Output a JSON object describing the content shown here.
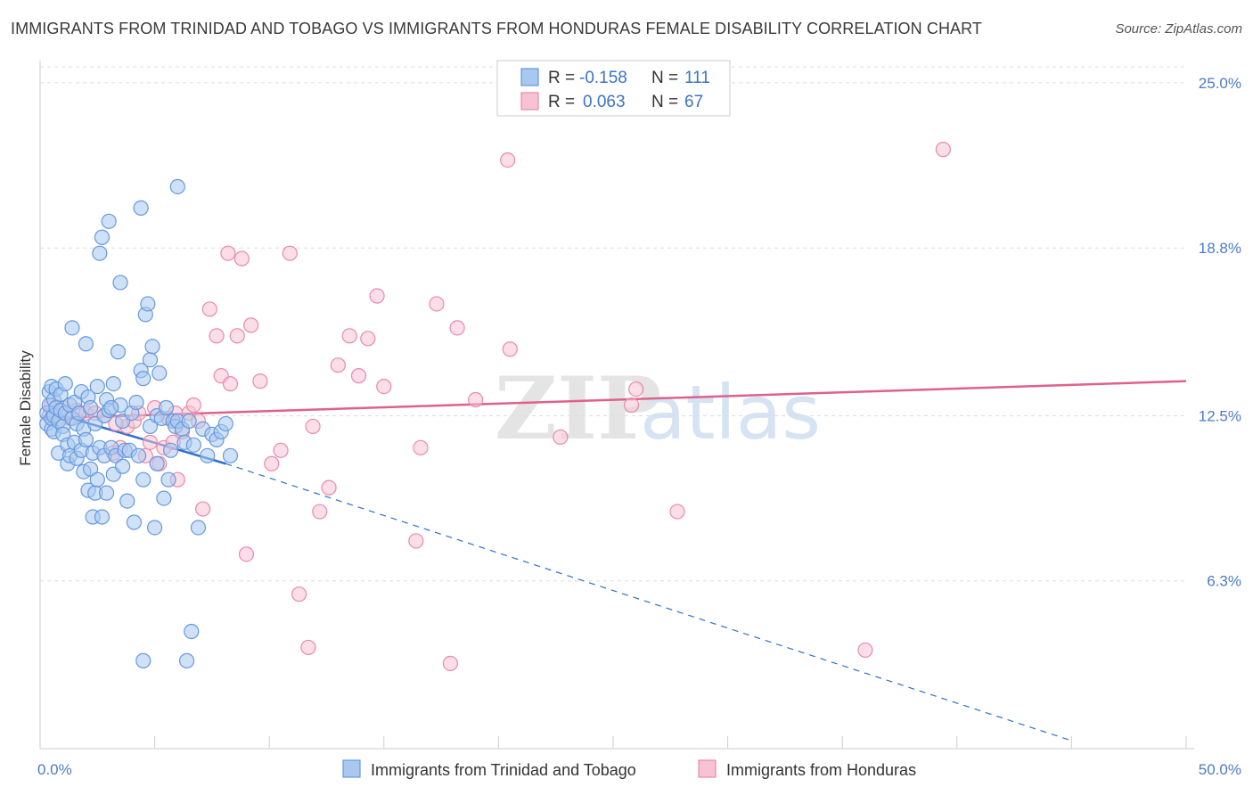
{
  "title": "IMMIGRANTS FROM TRINIDAD AND TOBAGO VS IMMIGRANTS FROM HONDURAS FEMALE DISABILITY CORRELATION CHART",
  "source": "Source: ZipAtlas.com",
  "watermark": {
    "zip": "ZIP",
    "atlas": "atlas"
  },
  "colors": {
    "blue_fill": "#a8c8f0",
    "blue_stroke": "#6699dd",
    "blue_line": "#2f6fce",
    "pink_fill": "#f7c2d4",
    "pink_stroke": "#e88aab",
    "pink_line": "#e0608c",
    "grid": "#dddddd",
    "axis_text": "#4a7cc7"
  },
  "legend": {
    "rows": [
      {
        "r_label": "R =",
        "r_value": "-0.158",
        "n_label": "N =",
        "n_value": "111"
      },
      {
        "r_label": "R =",
        "r_value": "0.063",
        "n_label": "N =",
        "n_value": "67"
      }
    ]
  },
  "chart_data": {
    "type": "scatter",
    "title": "IMMIGRANTS FROM TRINIDAD AND TOBAGO VS IMMIGRANTS FROM HONDURAS FEMALE DISABILITY CORRELATION CHART",
    "xlabel": "",
    "ylabel": "Female Disability",
    "xlim": [
      0,
      50
    ],
    "ylim": [
      0,
      25.6
    ],
    "x_ticks_labels": [
      "0.0%",
      "50.0%"
    ],
    "y_ticks": [
      6.3,
      12.5,
      18.8,
      25.0
    ],
    "y_ticks_labels": [
      "6.3%",
      "12.5%",
      "18.8%",
      "25.0%"
    ],
    "grid": true,
    "legend_position": "top-center",
    "series": [
      {
        "name": "Immigrants from Trinidad and Tobago",
        "color": "#a8c8f0",
        "trend": {
          "x_solid": [
            0.2,
            8.1
          ],
          "y_solid": [
            12.7,
            10.7
          ],
          "x_dashed": [
            8.1,
            45.0
          ],
          "y_dashed": [
            10.7,
            0.3
          ]
        },
        "points": [
          [
            0.3,
            12.6
          ],
          [
            0.3,
            12.2
          ],
          [
            0.4,
            12.9
          ],
          [
            0.4,
            13.4
          ],
          [
            0.5,
            12.0
          ],
          [
            0.5,
            12.4
          ],
          [
            0.5,
            13.6
          ],
          [
            0.6,
            11.9
          ],
          [
            0.6,
            12.5
          ],
          [
            0.6,
            13.1
          ],
          [
            0.7,
            12.8
          ],
          [
            0.7,
            13.5
          ],
          [
            0.8,
            12.3
          ],
          [
            0.8,
            11.1
          ],
          [
            0.9,
            12.7
          ],
          [
            0.9,
            13.3
          ],
          [
            1.0,
            12.1
          ],
          [
            1.0,
            11.8
          ],
          [
            1.1,
            12.6
          ],
          [
            1.1,
            13.7
          ],
          [
            1.2,
            10.7
          ],
          [
            1.2,
            11.4
          ],
          [
            1.3,
            12.9
          ],
          [
            1.3,
            11.0
          ],
          [
            1.4,
            12.4
          ],
          [
            1.4,
            15.8
          ],
          [
            1.5,
            13.0
          ],
          [
            1.5,
            11.5
          ],
          [
            1.6,
            12.2
          ],
          [
            1.6,
            10.9
          ],
          [
            1.7,
            12.6
          ],
          [
            1.8,
            11.2
          ],
          [
            1.8,
            13.4
          ],
          [
            1.9,
            10.4
          ],
          [
            1.9,
            12.0
          ],
          [
            2.0,
            15.2
          ],
          [
            2.0,
            11.6
          ],
          [
            2.1,
            13.2
          ],
          [
            2.1,
            9.7
          ],
          [
            2.2,
            10.5
          ],
          [
            2.2,
            12.8
          ],
          [
            2.3,
            8.7
          ],
          [
            2.3,
            11.1
          ],
          [
            2.4,
            12.2
          ],
          [
            2.4,
            9.6
          ],
          [
            2.5,
            10.1
          ],
          [
            2.5,
            13.6
          ],
          [
            2.6,
            11.3
          ],
          [
            2.6,
            18.6
          ],
          [
            2.7,
            19.2
          ],
          [
            2.7,
            8.7
          ],
          [
            2.8,
            12.5
          ],
          [
            2.8,
            11.0
          ],
          [
            2.9,
            9.6
          ],
          [
            2.9,
            13.1
          ],
          [
            3.0,
            12.7
          ],
          [
            3.0,
            19.8
          ],
          [
            3.1,
            11.3
          ],
          [
            3.2,
            10.3
          ],
          [
            3.2,
            13.7
          ],
          [
            3.3,
            11.0
          ],
          [
            3.4,
            14.9
          ],
          [
            3.5,
            12.9
          ],
          [
            3.5,
            17.5
          ],
          [
            3.6,
            10.6
          ],
          [
            3.6,
            12.3
          ],
          [
            3.7,
            11.2
          ],
          [
            3.8,
            9.3
          ],
          [
            3.9,
            11.2
          ],
          [
            4.0,
            12.6
          ],
          [
            4.1,
            8.5
          ],
          [
            4.2,
            13.0
          ],
          [
            4.3,
            11.0
          ],
          [
            4.4,
            14.2
          ],
          [
            4.4,
            20.3
          ],
          [
            4.5,
            13.9
          ],
          [
            4.5,
            10.1
          ],
          [
            4.6,
            16.3
          ],
          [
            4.7,
            16.7
          ],
          [
            4.8,
            12.1
          ],
          [
            4.8,
            14.6
          ],
          [
            4.9,
            15.1
          ],
          [
            5.0,
            8.3
          ],
          [
            5.1,
            10.7
          ],
          [
            5.1,
            12.5
          ],
          [
            5.2,
            14.1
          ],
          [
            5.3,
            12.4
          ],
          [
            5.4,
            9.4
          ],
          [
            5.5,
            12.8
          ],
          [
            5.6,
            10.1
          ],
          [
            5.7,
            11.2
          ],
          [
            5.8,
            12.3
          ],
          [
            5.9,
            12.1
          ],
          [
            6.0,
            12.3
          ],
          [
            6.0,
            21.1
          ],
          [
            6.2,
            12.0
          ],
          [
            6.3,
            11.5
          ],
          [
            6.5,
            12.3
          ],
          [
            6.7,
            11.4
          ],
          [
            6.9,
            8.3
          ],
          [
            7.1,
            12.0
          ],
          [
            7.3,
            11.0
          ],
          [
            7.5,
            11.8
          ],
          [
            7.7,
            11.6
          ],
          [
            7.9,
            11.9
          ],
          [
            8.1,
            12.2
          ],
          [
            8.3,
            11.0
          ],
          [
            4.5,
            3.3
          ],
          [
            6.4,
            3.3
          ],
          [
            6.6,
            4.4
          ],
          [
            3.1,
            12.8
          ]
        ]
      },
      {
        "name": "Immigrants from Honduras",
        "color": "#f7c2d4",
        "trend": {
          "x": [
            0.2,
            50.0
          ],
          "y": [
            12.4,
            13.8
          ]
        },
        "points": [
          [
            0.4,
            12.5
          ],
          [
            0.5,
            12.9
          ],
          [
            0.8,
            12.3
          ],
          [
            1.0,
            12.8
          ],
          [
            1.3,
            12.4
          ],
          [
            1.6,
            12.7
          ],
          [
            2.0,
            12.6
          ],
          [
            2.4,
            12.6
          ],
          [
            2.8,
            12.5
          ],
          [
            3.2,
            11.1
          ],
          [
            3.5,
            11.3
          ],
          [
            3.8,
            12.1
          ],
          [
            4.1,
            12.3
          ],
          [
            4.3,
            12.6
          ],
          [
            4.6,
            11.0
          ],
          [
            4.8,
            11.5
          ],
          [
            5.0,
            12.8
          ],
          [
            5.2,
            10.7
          ],
          [
            5.4,
            11.3
          ],
          [
            5.6,
            12.4
          ],
          [
            5.8,
            11.5
          ],
          [
            6.0,
            10.1
          ],
          [
            6.2,
            11.9
          ],
          [
            6.5,
            12.6
          ],
          [
            6.7,
            12.9
          ],
          [
            6.9,
            12.3
          ],
          [
            7.1,
            9.0
          ],
          [
            7.4,
            16.5
          ],
          [
            7.7,
            15.5
          ],
          [
            7.9,
            14.0
          ],
          [
            8.2,
            18.6
          ],
          [
            8.3,
            13.7
          ],
          [
            8.6,
            15.5
          ],
          [
            8.8,
            18.4
          ],
          [
            9.0,
            7.3
          ],
          [
            9.2,
            15.9
          ],
          [
            9.6,
            13.8
          ],
          [
            10.1,
            10.7
          ],
          [
            10.5,
            11.2
          ],
          [
            10.9,
            18.6
          ],
          [
            11.3,
            5.8
          ],
          [
            11.7,
            3.8
          ],
          [
            11.9,
            12.1
          ],
          [
            12.2,
            8.9
          ],
          [
            12.6,
            9.8
          ],
          [
            13.0,
            14.4
          ],
          [
            13.5,
            15.5
          ],
          [
            13.9,
            14.0
          ],
          [
            14.3,
            15.4
          ],
          [
            14.7,
            17.0
          ],
          [
            15.0,
            13.6
          ],
          [
            16.4,
            7.8
          ],
          [
            16.6,
            11.3
          ],
          [
            17.3,
            16.7
          ],
          [
            17.9,
            3.2
          ],
          [
            18.2,
            15.8
          ],
          [
            19.0,
            13.1
          ],
          [
            20.5,
            15.0
          ],
          [
            20.4,
            22.1
          ],
          [
            22.7,
            11.7
          ],
          [
            25.8,
            12.9
          ],
          [
            26.0,
            13.5
          ],
          [
            27.8,
            8.9
          ],
          [
            36.0,
            3.7
          ],
          [
            39.4,
            22.5
          ],
          [
            5.9,
            12.6
          ],
          [
            3.3,
            12.2
          ]
        ]
      }
    ]
  },
  "bottom_legend": [
    {
      "label": "Immigrants from Trinidad and Tobago"
    },
    {
      "label": "Immigrants from Honduras"
    }
  ]
}
